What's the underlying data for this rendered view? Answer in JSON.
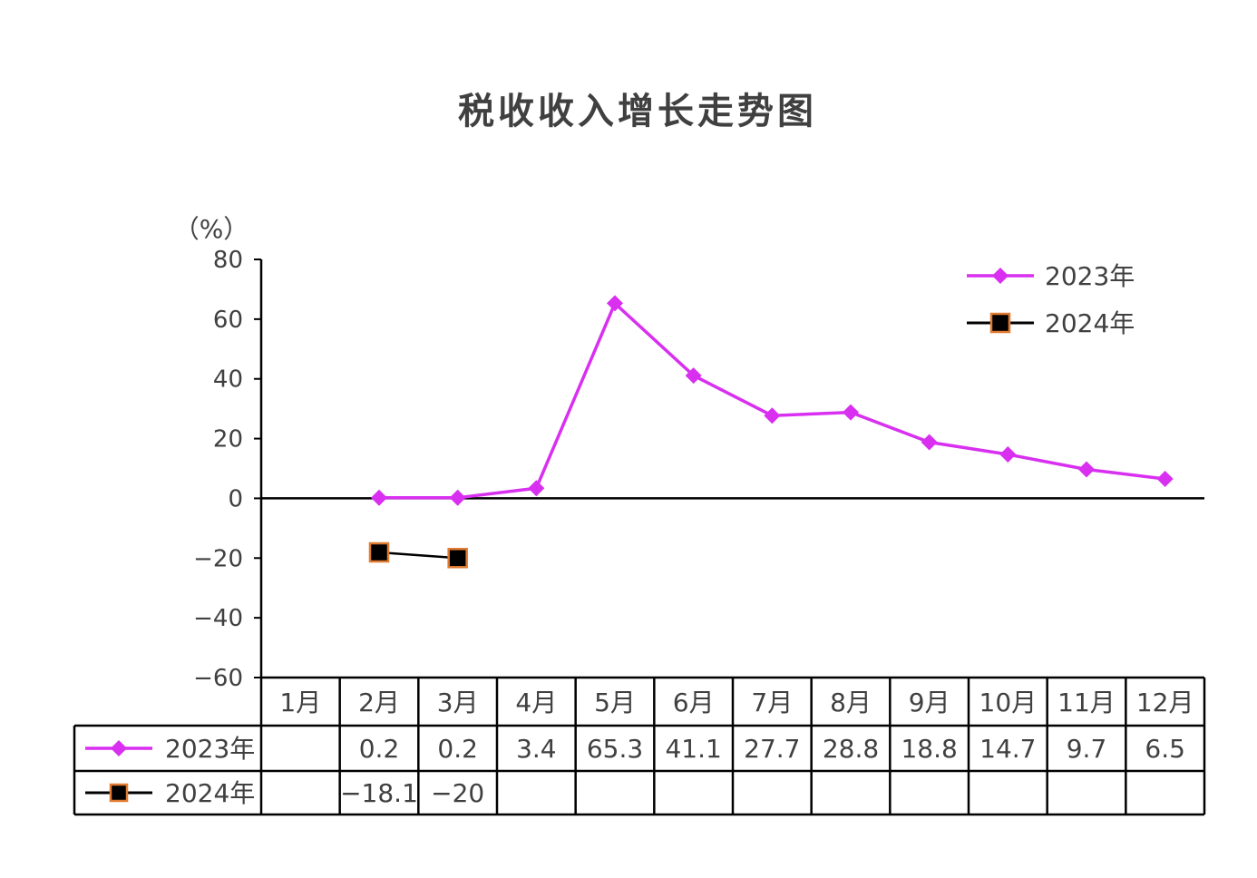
{
  "chart_data": {
    "type": "line",
    "title": "税收收入增长走势图",
    "ylabel": "（%）",
    "ylim": [
      -60,
      80
    ],
    "yticks": [
      80,
      60,
      40,
      20,
      0,
      -20,
      -40,
      -60
    ],
    "grid": false,
    "legend_position": "top-right",
    "categories": [
      "1月",
      "2月",
      "3月",
      "4月",
      "5月",
      "6月",
      "7月",
      "8月",
      "9月",
      "10月",
      "11月",
      "12月"
    ],
    "series": [
      {
        "name": "2023年",
        "color": "#d82ff0",
        "marker": "diamond",
        "values": [
          null,
          0.2,
          0.2,
          3.4,
          65.3,
          41.1,
          27.7,
          28.8,
          18.8,
          14.7,
          9.7,
          6.5
        ],
        "labels": [
          "",
          "0.2",
          "0.2",
          "3.4",
          "65.3",
          "41.1",
          "27.7",
          "28.8",
          "18.8",
          "14.7",
          "9.7",
          "6.5"
        ]
      },
      {
        "name": "2024年",
        "color": "#000000",
        "marker_edge": "#e07a30",
        "marker": "square",
        "values": [
          null,
          -18.1,
          -20,
          null,
          null,
          null,
          null,
          null,
          null,
          null,
          null,
          null
        ],
        "labels": [
          "",
          "-18.1",
          "-20",
          "",
          "",
          "",
          "",
          "",
          "",
          "",
          "",
          ""
        ]
      }
    ]
  }
}
